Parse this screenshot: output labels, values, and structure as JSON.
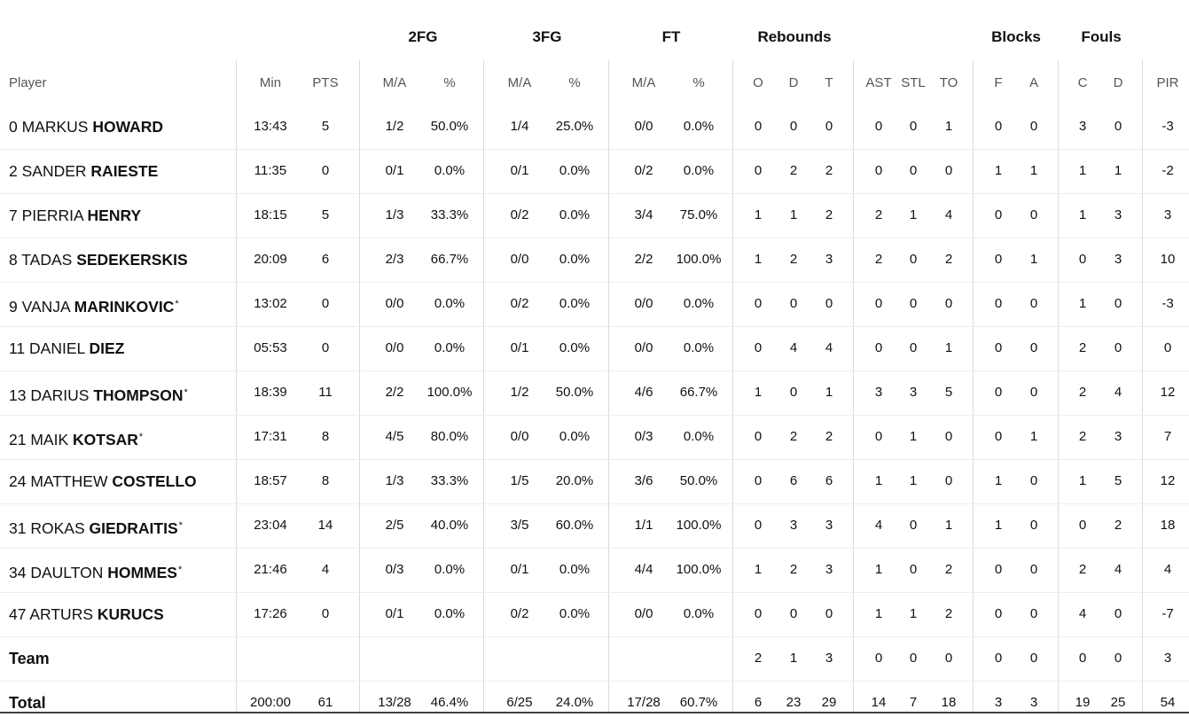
{
  "header": {
    "groups": [
      {
        "key": "2fg",
        "label": "2FG"
      },
      {
        "key": "3fg",
        "label": "3FG"
      },
      {
        "key": "ft",
        "label": "FT"
      },
      {
        "key": "reb",
        "label": "Rebounds"
      },
      {
        "key": "blk",
        "label": "Blocks"
      },
      {
        "key": "fouls",
        "label": "Fouls"
      }
    ],
    "columns": {
      "player": "Player",
      "min": "Min",
      "pts": "PTS",
      "fg2ma": "M/A",
      "fg2p": "%",
      "fg3ma": "M/A",
      "fg3p": "%",
      "ftma": "M/A",
      "ftp": "%",
      "o": "O",
      "d": "D",
      "t": "T",
      "ast": "AST",
      "stl": "STL",
      "to": "TO",
      "bf": "F",
      "ba": "A",
      "fc": "C",
      "fd": "D",
      "pir": "PIR"
    }
  },
  "players": [
    {
      "num": "0",
      "first": "MARKUS",
      "last": "HOWARD",
      "star": false,
      "min": "13:43",
      "pts": "5",
      "fg2ma": "1/2",
      "fg2p": "50.0%",
      "fg3ma": "1/4",
      "fg3p": "25.0%",
      "ftma": "0/0",
      "ftp": "0.0%",
      "o": "0",
      "d": "0",
      "t": "0",
      "ast": "0",
      "stl": "0",
      "to": "1",
      "bf": "0",
      "ba": "0",
      "fc": "3",
      "fd": "0",
      "pir": "-3"
    },
    {
      "num": "2",
      "first": "SANDER",
      "last": "RAIESTE",
      "star": false,
      "min": "11:35",
      "pts": "0",
      "fg2ma": "0/1",
      "fg2p": "0.0%",
      "fg3ma": "0/1",
      "fg3p": "0.0%",
      "ftma": "0/2",
      "ftp": "0.0%",
      "o": "0",
      "d": "2",
      "t": "2",
      "ast": "0",
      "stl": "0",
      "to": "0",
      "bf": "1",
      "ba": "1",
      "fc": "1",
      "fd": "1",
      "pir": "-2"
    },
    {
      "num": "7",
      "first": "PIERRIA",
      "last": "HENRY",
      "star": false,
      "min": "18:15",
      "pts": "5",
      "fg2ma": "1/3",
      "fg2p": "33.3%",
      "fg3ma": "0/2",
      "fg3p": "0.0%",
      "ftma": "3/4",
      "ftp": "75.0%",
      "o": "1",
      "d": "1",
      "t": "2",
      "ast": "2",
      "stl": "1",
      "to": "4",
      "bf": "0",
      "ba": "0",
      "fc": "1",
      "fd": "3",
      "pir": "3"
    },
    {
      "num": "8",
      "first": "TADAS",
      "last": "SEDEKERSKIS",
      "star": false,
      "min": "20:09",
      "pts": "6",
      "fg2ma": "2/3",
      "fg2p": "66.7%",
      "fg3ma": "0/0",
      "fg3p": "0.0%",
      "ftma": "2/2",
      "ftp": "100.0%",
      "o": "1",
      "d": "2",
      "t": "3",
      "ast": "2",
      "stl": "0",
      "to": "2",
      "bf": "0",
      "ba": "1",
      "fc": "0",
      "fd": "3",
      "pir": "10"
    },
    {
      "num": "9",
      "first": "VANJA",
      "last": "MARINKOVIC",
      "star": true,
      "min": "13:02",
      "pts": "0",
      "fg2ma": "0/0",
      "fg2p": "0.0%",
      "fg3ma": "0/2",
      "fg3p": "0.0%",
      "ftma": "0/0",
      "ftp": "0.0%",
      "o": "0",
      "d": "0",
      "t": "0",
      "ast": "0",
      "stl": "0",
      "to": "0",
      "bf": "0",
      "ba": "0",
      "fc": "1",
      "fd": "0",
      "pir": "-3"
    },
    {
      "num": "11",
      "first": "DANIEL",
      "last": "DIEZ",
      "star": false,
      "min": "05:53",
      "pts": "0",
      "fg2ma": "0/0",
      "fg2p": "0.0%",
      "fg3ma": "0/1",
      "fg3p": "0.0%",
      "ftma": "0/0",
      "ftp": "0.0%",
      "o": "0",
      "d": "4",
      "t": "4",
      "ast": "0",
      "stl": "0",
      "to": "1",
      "bf": "0",
      "ba": "0",
      "fc": "2",
      "fd": "0",
      "pir": "0"
    },
    {
      "num": "13",
      "first": "DARIUS",
      "last": "THOMPSON",
      "star": true,
      "min": "18:39",
      "pts": "11",
      "fg2ma": "2/2",
      "fg2p": "100.0%",
      "fg3ma": "1/2",
      "fg3p": "50.0%",
      "ftma": "4/6",
      "ftp": "66.7%",
      "o": "1",
      "d": "0",
      "t": "1",
      "ast": "3",
      "stl": "3",
      "to": "5",
      "bf": "0",
      "ba": "0",
      "fc": "2",
      "fd": "4",
      "pir": "12"
    },
    {
      "num": "21",
      "first": "MAIK",
      "last": "KOTSAR",
      "star": true,
      "min": "17:31",
      "pts": "8",
      "fg2ma": "4/5",
      "fg2p": "80.0%",
      "fg3ma": "0/0",
      "fg3p": "0.0%",
      "ftma": "0/3",
      "ftp": "0.0%",
      "o": "0",
      "d": "2",
      "t": "2",
      "ast": "0",
      "stl": "1",
      "to": "0",
      "bf": "0",
      "ba": "1",
      "fc": "2",
      "fd": "3",
      "pir": "7"
    },
    {
      "num": "24",
      "first": "MATTHEW",
      "last": "COSTELLO",
      "star": false,
      "min": "18:57",
      "pts": "8",
      "fg2ma": "1/3",
      "fg2p": "33.3%",
      "fg3ma": "1/5",
      "fg3p": "20.0%",
      "ftma": "3/6",
      "ftp": "50.0%",
      "o": "0",
      "d": "6",
      "t": "6",
      "ast": "1",
      "stl": "1",
      "to": "0",
      "bf": "1",
      "ba": "0",
      "fc": "1",
      "fd": "5",
      "pir": "12"
    },
    {
      "num": "31",
      "first": "ROKAS",
      "last": "GIEDRAITIS",
      "star": true,
      "min": "23:04",
      "pts": "14",
      "fg2ma": "2/5",
      "fg2p": "40.0%",
      "fg3ma": "3/5",
      "fg3p": "60.0%",
      "ftma": "1/1",
      "ftp": "100.0%",
      "o": "0",
      "d": "3",
      "t": "3",
      "ast": "4",
      "stl": "0",
      "to": "1",
      "bf": "1",
      "ba": "0",
      "fc": "0",
      "fd": "2",
      "pir": "18"
    },
    {
      "num": "34",
      "first": "DAULTON",
      "last": "HOMMES",
      "star": true,
      "min": "21:46",
      "pts": "4",
      "fg2ma": "0/3",
      "fg2p": "0.0%",
      "fg3ma": "0/1",
      "fg3p": "0.0%",
      "ftma": "4/4",
      "ftp": "100.0%",
      "o": "1",
      "d": "2",
      "t": "3",
      "ast": "1",
      "stl": "0",
      "to": "2",
      "bf": "0",
      "ba": "0",
      "fc": "2",
      "fd": "4",
      "pir": "4"
    },
    {
      "num": "47",
      "first": "ARTURS",
      "last": "KURUCS",
      "star": false,
      "min": "17:26",
      "pts": "0",
      "fg2ma": "0/1",
      "fg2p": "0.0%",
      "fg3ma": "0/2",
      "fg3p": "0.0%",
      "ftma": "0/0",
      "ftp": "0.0%",
      "o": "0",
      "d": "0",
      "t": "0",
      "ast": "1",
      "stl": "1",
      "to": "2",
      "bf": "0",
      "ba": "0",
      "fc": "4",
      "fd": "0",
      "pir": "-7"
    }
  ],
  "team_row": {
    "label": "Team",
    "o": "2",
    "d": "1",
    "t": "3",
    "ast": "0",
    "stl": "0",
    "to": "0",
    "bf": "0",
    "ba": "0",
    "fc": "0",
    "fd": "0",
    "pir": "3"
  },
  "total_row": {
    "label": "Total",
    "min": "200:00",
    "pts": "61",
    "fg2ma": "13/28",
    "fg2p": "46.4%",
    "fg3ma": "6/25",
    "fg3p": "24.0%",
    "ftma": "17/28",
    "ftp": "60.7%",
    "o": "6",
    "d": "23",
    "t": "29",
    "ast": "14",
    "stl": "7",
    "to": "18",
    "bf": "3",
    "ba": "3",
    "fc": "19",
    "fd": "25",
    "pir": "54"
  }
}
